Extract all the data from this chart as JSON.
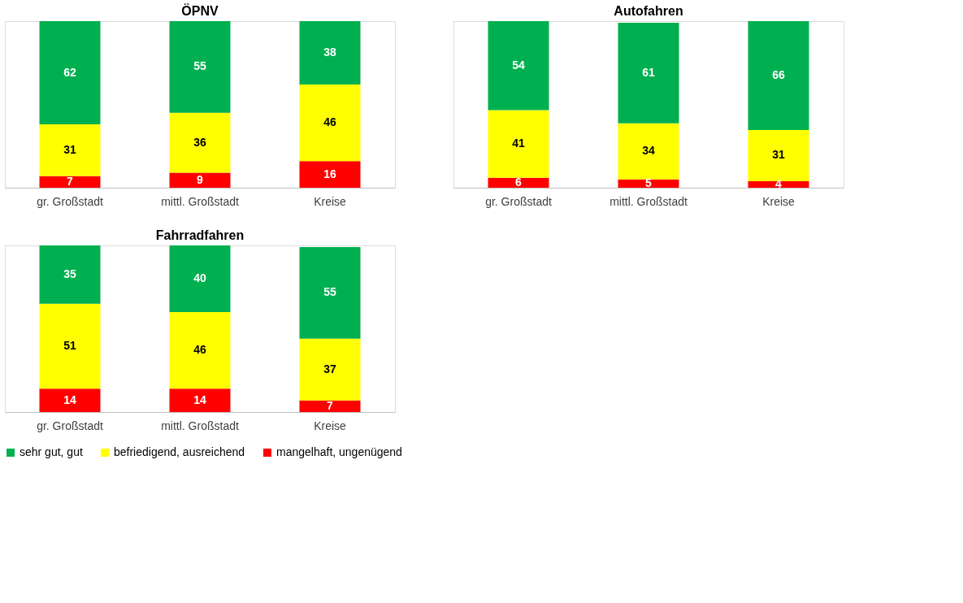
{
  "chart_data": [
    {
      "type": "bar",
      "title": "ÖPNV",
      "stacked": true,
      "data_labels": true,
      "legend": "bottom",
      "grid": false,
      "categories": [
        "gr. Großstadt",
        "mittl. Großstadt",
        "Kreise"
      ],
      "series": [
        {
          "name": "mangelhaft, ungenügend",
          "color": "#ff0000",
          "values": [
            7,
            9,
            16
          ]
        },
        {
          "name": "befriedigend, ausreichend",
          "color": "#ffff00",
          "values": [
            31,
            36,
            46
          ]
        },
        {
          "name": "sehr gut, gut",
          "color": "#00b050",
          "values": [
            62,
            55,
            38
          ]
        }
      ]
    },
    {
      "type": "bar",
      "title": "Autofahren",
      "stacked": true,
      "data_labels": true,
      "legend": "bottom",
      "grid": false,
      "categories": [
        "gr. Großstadt",
        "mittl. Großstadt",
        "Kreise"
      ],
      "series": [
        {
          "name": "mangelhaft, ungenügend",
          "color": "#ff0000",
          "values": [
            6,
            5,
            4
          ]
        },
        {
          "name": "befriedigend, ausreichend",
          "color": "#ffff00",
          "values": [
            41,
            34,
            31
          ]
        },
        {
          "name": "sehr gut, gut",
          "color": "#00b050",
          "values": [
            54,
            61,
            66
          ]
        }
      ]
    },
    {
      "type": "bar",
      "title": "Fahrradfahren",
      "stacked": true,
      "data_labels": true,
      "legend": "bottom",
      "grid": false,
      "categories": [
        "gr. Großstadt",
        "mittl. Großstadt",
        "Kreise"
      ],
      "series": [
        {
          "name": "mangelhaft, ungenügend",
          "color": "#ff0000",
          "values": [
            14,
            14,
            7
          ]
        },
        {
          "name": "befriedigend, ausreichend",
          "color": "#ffff00",
          "values": [
            51,
            46,
            37
          ]
        },
        {
          "name": "sehr gut, gut",
          "color": "#00b050",
          "values": [
            35,
            40,
            55
          ]
        }
      ]
    }
  ]
}
